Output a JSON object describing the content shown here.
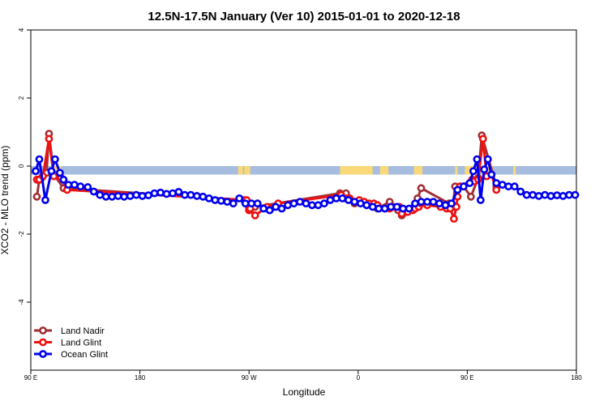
{
  "chart_data": {
    "type": "line",
    "title": "12.5N-17.5N January (Ver 10)   2015-01-01 to 2020-12-18",
    "xlabel": "Longitude",
    "ylabel": "XCO2 - MLO trend (ppm)",
    "xlim": [
      90,
      540
    ],
    "ylim": [
      -6,
      4
    ],
    "x_ticks": [
      {
        "value": 90,
        "label": "90 E"
      },
      {
        "value": 180,
        "label": "180"
      },
      {
        "value": 270,
        "label": "90 W"
      },
      {
        "value": 360,
        "label": "0"
      },
      {
        "value": 450,
        "label": "90 E"
      },
      {
        "value": 540,
        "label": "180"
      }
    ],
    "y_ticks": [
      {
        "value": 4,
        "label": "4"
      },
      {
        "value": 2,
        "label": "2"
      },
      {
        "value": 0,
        "label": "0"
      },
      {
        "value": -2,
        "label": "-2"
      },
      {
        "value": -4,
        "label": "-4"
      }
    ],
    "land_band": {
      "y_range": [
        -0.25,
        0
      ],
      "ocean_color": "#a6bde0",
      "land_color": "#f8d878",
      "land_segments": [
        [
          102.5,
          103.5
        ],
        [
          106.5,
          115
        ],
        [
          261,
          265
        ],
        [
          266,
          271
        ],
        [
          345,
          372
        ],
        [
          378,
          385
        ],
        [
          406,
          413
        ],
        [
          440,
          442
        ],
        [
          448,
          459
        ],
        [
          462,
          464
        ],
        [
          467,
          471
        ],
        [
          488,
          490
        ]
      ]
    },
    "legend_position": "bottom-left",
    "series": [
      {
        "name": "Land Nadir",
        "color": "#a03034",
        "x": [
          95,
          97,
          99,
          103,
          105,
          109,
          117,
          266,
          270,
          275,
          345,
          350,
          357,
          365,
          376,
          386,
          393,
          396,
          400,
          409,
          412,
          435,
          438,
          440,
          447,
          453,
          459,
          462,
          474
        ],
        "values": [
          -0.9,
          -0.4,
          -0.35,
          -0.2,
          0.95,
          -0.25,
          -0.65,
          -1.0,
          -1.25,
          -1.2,
          -0.8,
          -0.8,
          -1.1,
          -1.05,
          -1.25,
          -1.05,
          -1.3,
          -1.45,
          -1.35,
          -0.95,
          -0.65,
          -1.1,
          -1.2,
          -0.6,
          -0.6,
          -0.9,
          -0.35,
          0.9,
          -0.6
        ]
      },
      {
        "name": "Land Glint",
        "color": "#ee1111",
        "x": [
          95,
          97,
          100,
          105,
          109,
          115,
          120,
          268,
          270,
          271,
          275,
          285,
          288,
          294,
          346,
          350,
          353,
          357,
          361,
          365,
          369,
          373,
          376,
          382,
          386,
          389,
          394,
          396,
          401,
          405,
          407,
          410,
          412,
          417,
          428,
          433,
          436,
          439,
          441,
          442,
          444,
          454,
          456,
          459,
          463,
          466,
          470,
          474
        ],
        "values": [
          -0.4,
          -0.4,
          -0.3,
          0.8,
          -0.3,
          -0.35,
          -0.7,
          -1.0,
          -1.3,
          -1.25,
          -1.45,
          -1.2,
          -1.25,
          -1.1,
          -0.85,
          -0.95,
          -0.95,
          -1.05,
          -1.0,
          -1.05,
          -1.1,
          -1.1,
          -1.15,
          -1.25,
          -1.25,
          -1.2,
          -1.2,
          -1.4,
          -1.35,
          -1.3,
          -1.25,
          -1.2,
          -1.1,
          -1.15,
          -1.2,
          -1.25,
          -1.25,
          -1.55,
          -1.2,
          -0.9,
          -0.6,
          -0.4,
          -0.45,
          -0.4,
          0.8,
          -0.3,
          -0.25,
          -0.7
        ]
      },
      {
        "name": "Ocean Glint",
        "color": "#0000ee",
        "x": [
          94,
          97,
          102,
          107,
          110,
          114,
          117,
          121,
          126,
          131,
          137,
          142,
          147,
          152,
          157,
          162,
          167,
          172,
          177,
          182,
          187,
          192,
          197,
          202,
          207,
          212,
          217,
          222,
          227,
          232,
          237,
          242,
          247,
          252,
          257,
          262,
          267,
          272,
          277,
          282,
          287,
          292,
          297,
          302,
          307,
          312,
          317,
          322,
          327,
          332,
          337,
          342,
          347,
          352,
          357,
          362,
          367,
          372,
          377,
          382,
          387,
          392,
          397,
          402,
          407,
          412,
          417,
          422,
          427,
          432,
          437,
          442,
          447,
          452,
          455,
          458,
          461,
          464,
          467,
          470,
          474,
          479,
          484,
          489,
          494,
          499,
          504,
          509,
          514,
          519,
          524,
          529,
          534,
          539
        ],
        "values": [
          -0.15,
          0.2,
          -1.0,
          -0.15,
          0.2,
          -0.2,
          -0.4,
          -0.55,
          -0.55,
          -0.6,
          -0.62,
          -0.75,
          -0.85,
          -0.9,
          -0.9,
          -0.88,
          -0.9,
          -0.88,
          -0.85,
          -0.88,
          -0.86,
          -0.8,
          -0.78,
          -0.82,
          -0.8,
          -0.76,
          -0.85,
          -0.85,
          -0.88,
          -0.9,
          -0.95,
          -1.0,
          -1.02,
          -1.05,
          -1.1,
          -0.95,
          -1.1,
          -1.1,
          -1.1,
          -1.25,
          -1.3,
          -1.2,
          -1.25,
          -1.15,
          -1.1,
          -1.05,
          -1.1,
          -1.15,
          -1.15,
          -1.1,
          -1.0,
          -0.95,
          -0.95,
          -1.0,
          -1.05,
          -1.1,
          -1.15,
          -1.2,
          -1.25,
          -1.25,
          -1.2,
          -1.2,
          -1.25,
          -1.25,
          -1.1,
          -1.05,
          -1.05,
          -1.05,
          -1.1,
          -1.15,
          -1.1,
          -0.7,
          -0.6,
          -0.5,
          -0.15,
          0.2,
          -1.0,
          -0.1,
          0.2,
          -0.25,
          -0.5,
          -0.55,
          -0.6,
          -0.6,
          -0.75,
          -0.85,
          -0.85,
          -0.88,
          -0.85,
          -0.88,
          -0.86,
          -0.88,
          -0.85,
          -0.85
        ]
      }
    ]
  }
}
